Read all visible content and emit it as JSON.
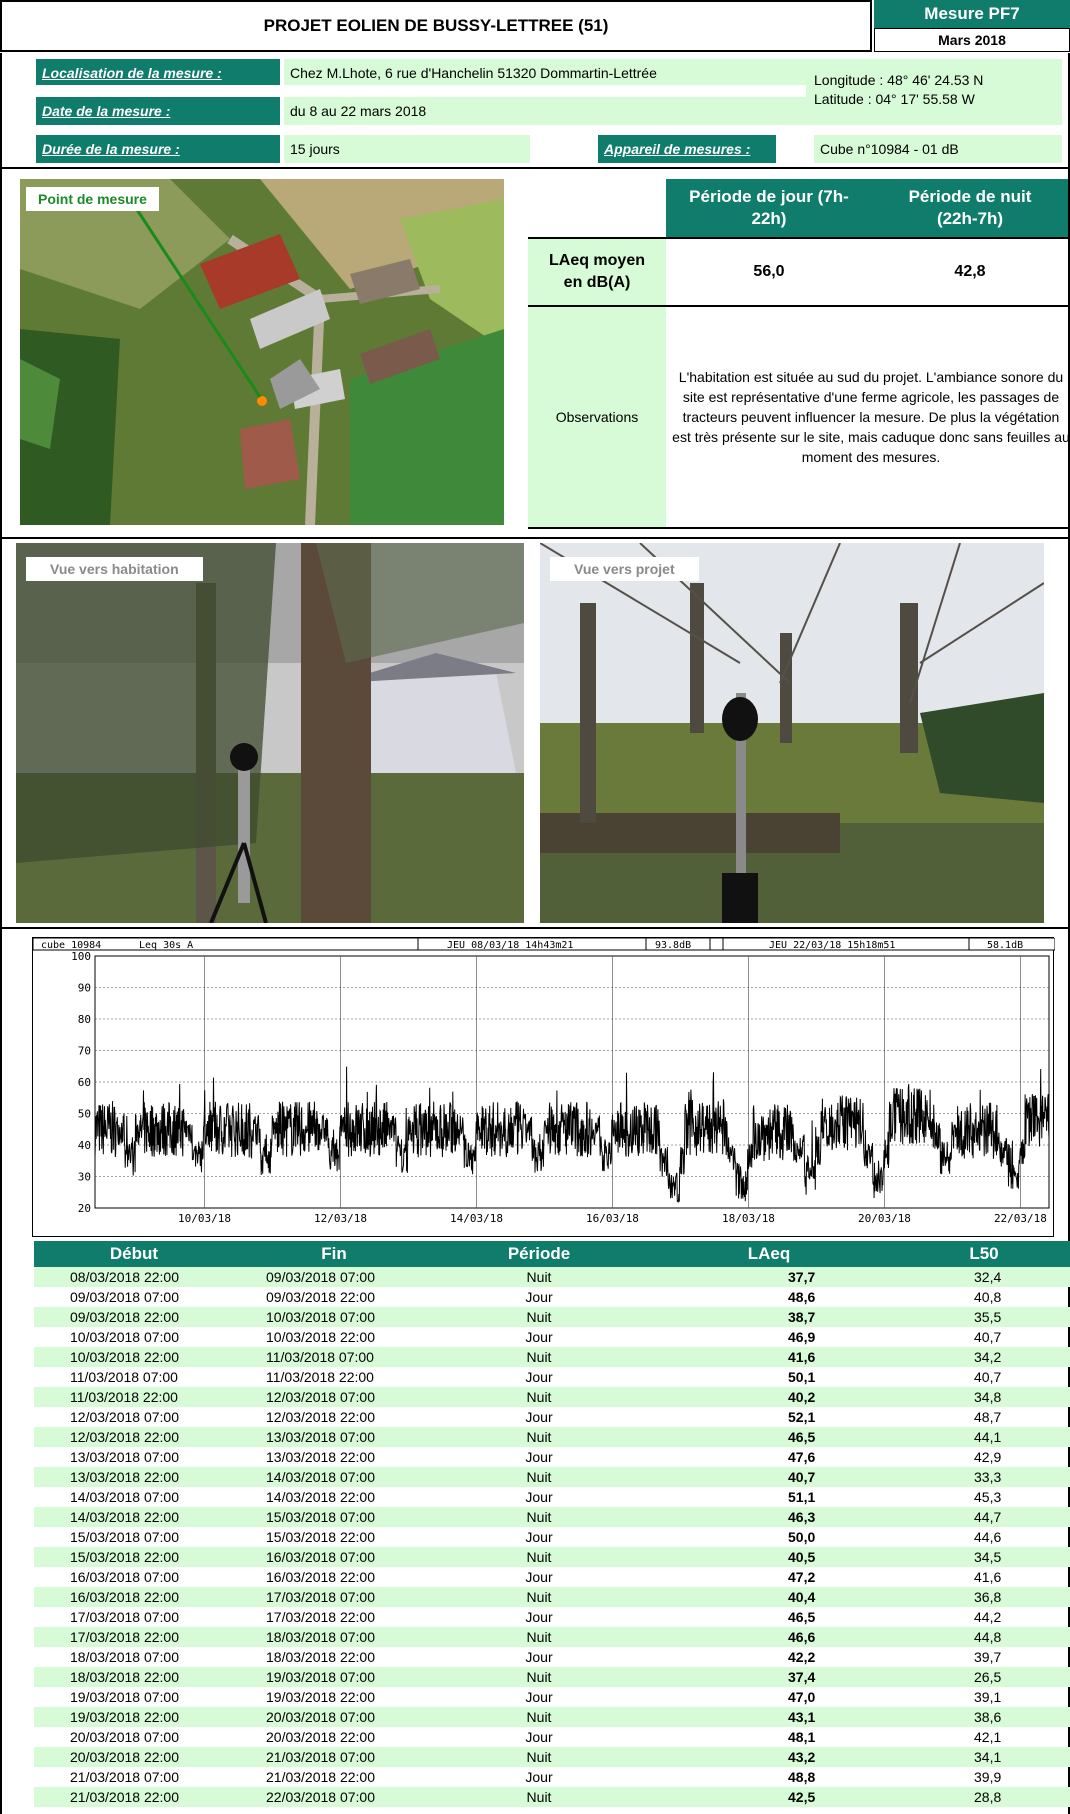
{
  "header": {
    "title": "PROJET EOLIEN DE BUSSY-LETTREE (51)",
    "measure_code": "Mesure PF7",
    "measure_date": "Mars 2018"
  },
  "info": {
    "location_label": "Localisation de la mesure :",
    "location_value": "Chez M.Lhote, 6 rue d'Hanchelin 51320 Dommartin-Lettrée",
    "date_label": "Date de la mesure :",
    "date_value": "du 8 au 22 mars 2018",
    "duration_label": "Durée de la mesure :",
    "duration_value": "15 jours",
    "device_label": "Appareil de mesures :",
    "device_value": "Cube n°10984 - 01 dB",
    "longitude": "Longitude : 48° 46' 24.53 N",
    "latitude": "Latitude : 04° 17' 55.58 W"
  },
  "map": {
    "label": "Point de mesure"
  },
  "summary": {
    "col_day": "Période de jour (7h-22h)",
    "col_night": "Période de nuit (22h-7h)",
    "row_label": "LAeq moyen en dB(A)",
    "day_value": "56,0",
    "night_value": "42,8",
    "obs_label": "Observations",
    "obs_text": "L'habitation est située au sud du projet. L'ambiance sonore du site est représentative d'une ferme agricole, les passages de tracteurs peuvent influencer la mesure. De plus la végétation est très présente sur le site, mais caduque donc sans feuilles au moment des mesures."
  },
  "photos": {
    "left_label": "Vue vers habitation",
    "right_label": "Vue vers projet"
  },
  "chart_data": {
    "type": "line",
    "header": {
      "device": "cube_10984",
      "index": "Leq 30s  A",
      "start": "JEU 08/03/18 14h43m21",
      "start_level": "93.8dB",
      "end": "JEU 22/03/18 15h18m51",
      "end_level": "58.1dB"
    },
    "ylim": [
      20,
      100
    ],
    "yticks": [
      20,
      30,
      40,
      50,
      60,
      70,
      80,
      90,
      100
    ],
    "xticks": [
      "10/03/18",
      "12/03/18",
      "14/03/18",
      "16/03/18",
      "18/03/18",
      "20/03/18",
      "22/03/18"
    ],
    "grid": true,
    "series_color": "#000000"
  },
  "table": {
    "headers": [
      "Début",
      "Fin",
      "Période",
      "LAeq",
      "L50"
    ],
    "rows": [
      [
        "08/03/2018 22:00",
        "09/03/2018 07:00",
        "Nuit",
        "37,7",
        "32,4"
      ],
      [
        "09/03/2018 07:00",
        "09/03/2018 22:00",
        "Jour",
        "48,6",
        "40,8"
      ],
      [
        "09/03/2018 22:00",
        "10/03/2018 07:00",
        "Nuit",
        "38,7",
        "35,5"
      ],
      [
        "10/03/2018 07:00",
        "10/03/2018 22:00",
        "Jour",
        "46,9",
        "40,7"
      ],
      [
        "10/03/2018 22:00",
        "11/03/2018 07:00",
        "Nuit",
        "41,6",
        "34,2"
      ],
      [
        "11/03/2018 07:00",
        "11/03/2018 22:00",
        "Jour",
        "50,1",
        "40,7"
      ],
      [
        "11/03/2018 22:00",
        "12/03/2018 07:00",
        "Nuit",
        "40,2",
        "34,8"
      ],
      [
        "12/03/2018 07:00",
        "12/03/2018 22:00",
        "Jour",
        "52,1",
        "48,7"
      ],
      [
        "12/03/2018 22:00",
        "13/03/2018 07:00",
        "Nuit",
        "46,5",
        "44,1"
      ],
      [
        "13/03/2018 07:00",
        "13/03/2018 22:00",
        "Jour",
        "47,6",
        "42,9"
      ],
      [
        "13/03/2018 22:00",
        "14/03/2018 07:00",
        "Nuit",
        "40,7",
        "33,3"
      ],
      [
        "14/03/2018 07:00",
        "14/03/2018 22:00",
        "Jour",
        "51,1",
        "45,3"
      ],
      [
        "14/03/2018 22:00",
        "15/03/2018 07:00",
        "Nuit",
        "46,3",
        "44,7"
      ],
      [
        "15/03/2018 07:00",
        "15/03/2018 22:00",
        "Jour",
        "50,0",
        "44,6"
      ],
      [
        "15/03/2018 22:00",
        "16/03/2018 07:00",
        "Nuit",
        "40,5",
        "34,5"
      ],
      [
        "16/03/2018 07:00",
        "16/03/2018 22:00",
        "Jour",
        "47,2",
        "41,6"
      ],
      [
        "16/03/2018 22:00",
        "17/03/2018 07:00",
        "Nuit",
        "40,4",
        "36,8"
      ],
      [
        "17/03/2018 07:00",
        "17/03/2018 22:00",
        "Jour",
        "46,5",
        "44,2"
      ],
      [
        "17/03/2018 22:00",
        "18/03/2018 07:00",
        "Nuit",
        "46,6",
        "44,8"
      ],
      [
        "18/03/2018 07:00",
        "18/03/2018 22:00",
        "Jour",
        "42,2",
        "39,7"
      ],
      [
        "18/03/2018 22:00",
        "19/03/2018 07:00",
        "Nuit",
        "37,4",
        "26,5"
      ],
      [
        "19/03/2018 07:00",
        "19/03/2018 22:00",
        "Jour",
        "47,0",
        "39,1"
      ],
      [
        "19/03/2018 22:00",
        "20/03/2018 07:00",
        "Nuit",
        "43,1",
        "38,6"
      ],
      [
        "20/03/2018 07:00",
        "20/03/2018 22:00",
        "Jour",
        "48,1",
        "42,1"
      ],
      [
        "20/03/2018 22:00",
        "21/03/2018 07:00",
        "Nuit",
        "43,2",
        "34,1"
      ],
      [
        "21/03/2018 07:00",
        "21/03/2018 22:00",
        "Jour",
        "48,8",
        "39,9"
      ],
      [
        "21/03/2018 22:00",
        "22/03/2018 07:00",
        "Nuit",
        "42,5",
        "28,8"
      ]
    ]
  }
}
